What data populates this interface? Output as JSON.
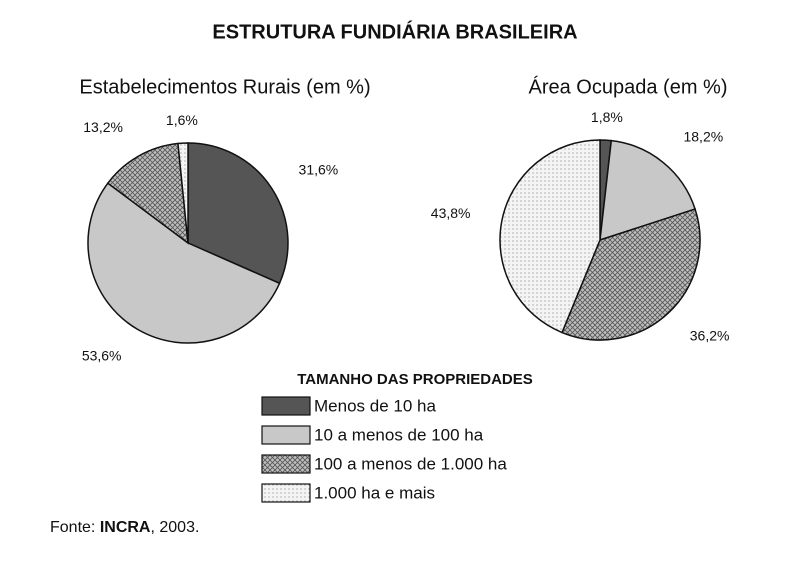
{
  "title": "ESTRUTURA FUNDIÁRIA BRASILEIRA",
  "legend": {
    "title": "TAMANHO DAS PROPRIEDADES",
    "categories": [
      "Menos de 10 ha",
      "10 a menos de 100 ha",
      "100 a menos de 1.000 ha",
      "1.000 ha e mais"
    ],
    "colors": [
      "#555555",
      "#c8c8c8",
      "#9a9a9a",
      "#eeeeee"
    ]
  },
  "source": [
    "Fonte: ",
    "INCRA",
    ", 2003."
  ],
  "chart_data": [
    {
      "type": "pie",
      "title": "Estabelecimentos Rurais (em %)",
      "values": [
        31.6,
        53.6,
        13.2,
        1.6
      ],
      "value_labels": [
        "31,6%",
        "53,6%",
        "13,2%",
        "1,6%"
      ]
    },
    {
      "type": "pie",
      "title": "Área Ocupada (em %)",
      "values": [
        1.8,
        18.2,
        36.2,
        43.8
      ],
      "value_labels": [
        "1,8%",
        "18,2%",
        "36,2%",
        "43,8%"
      ]
    }
  ]
}
